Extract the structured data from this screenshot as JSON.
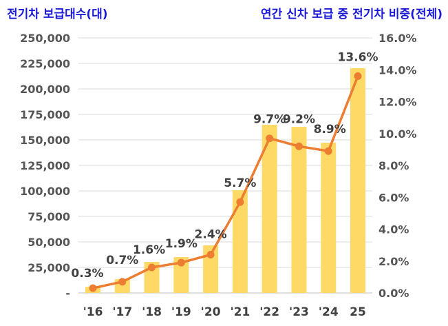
{
  "chart_data": {
    "type": "bar+line",
    "left_title": "전기차 보급대수(대)",
    "right_title": "연간 신차 보급 중 전기차 비중(전체)",
    "categories": [
      "'16",
      "'17",
      "'18",
      "'19",
      "'20",
      "'21",
      "'22",
      "'23",
      "'24",
      "25"
    ],
    "series": [
      {
        "type": "bar",
        "axis": "left",
        "values": [
          6000,
          13500,
          30400,
          35100,
          46600,
          100700,
          164900,
          162800,
          147300,
          220300
        ],
        "color": "#FFD966"
      },
      {
        "type": "line",
        "axis": "right",
        "values": [
          0.3,
          0.7,
          1.6,
          1.9,
          2.4,
          5.7,
          9.7,
          9.2,
          8.9,
          13.6
        ],
        "labels": [
          "0.3%",
          "0.7%",
          "1.6%",
          "1.9%",
          "2.4%",
          "5.7%",
          "9.7%",
          "9.2%",
          "8.9%",
          "13.6%"
        ],
        "color": "#ED7D31"
      }
    ],
    "left_axis": {
      "range": [
        0,
        250000
      ],
      "ticks": [
        "-",
        "25,000",
        "50,000",
        "75,000",
        "100,000",
        "125,000",
        "150,000",
        "175,000",
        "200,000",
        "225,000",
        "250,000"
      ]
    },
    "right_axis": {
      "range": [
        0,
        16
      ],
      "ticks": [
        "0.0%",
        "2.0%",
        "4.0%",
        "6.0%",
        "8.0%",
        "10.0%",
        "12.0%",
        "14.0%",
        "16.0%"
      ]
    },
    "grid": true,
    "title_color": "#1a1ad6"
  }
}
